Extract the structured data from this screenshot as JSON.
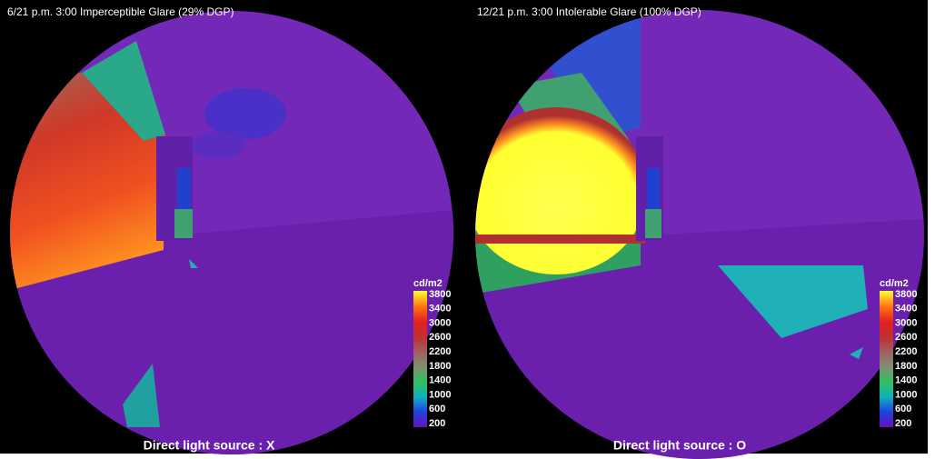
{
  "panels": [
    {
      "title": "6/21 p.m. 3:00  Imperceptible Glare (29% DGP)",
      "caption": "Direct light source : X",
      "legend": {
        "unit": "cd/m2",
        "labels": [
          "3800",
          "3400",
          "3000",
          "2600",
          "2200",
          "1800",
          "1400",
          "1000",
          "600",
          "200"
        ]
      }
    },
    {
      "title": "12/21 p.m. 3:00  Intolerable Glare (100% DGP)",
      "caption": "Direct light source : O",
      "legend": {
        "unit": "cd/m2",
        "labels": [
          "3800",
          "3400",
          "3000",
          "2600",
          "2200",
          "1800",
          "1400",
          "1000",
          "600",
          "200"
        ]
      }
    }
  ]
}
